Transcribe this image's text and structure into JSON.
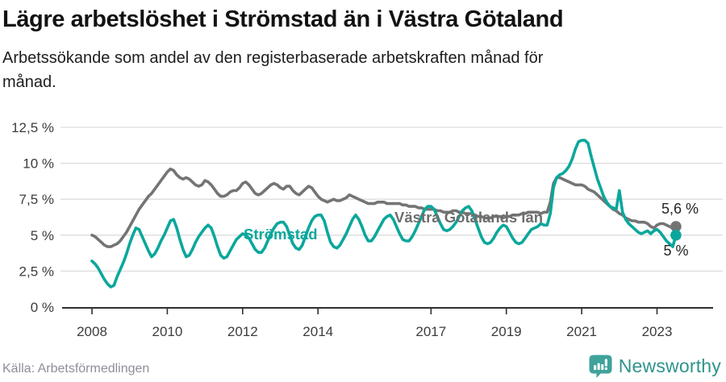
{
  "header": {
    "title": "Lägre arbetslöshet i Strömstad än i Västra Götaland",
    "subtitle_line1": "Arbetssökande som andel av den registerbaserade arbetskraften månad för",
    "subtitle_line2": "månad."
  },
  "footer": {
    "source": "Källa: Arbetsförmedlingen",
    "logo_icon": "newsworthy-speech-bubble-bar-chart-icon",
    "logo_text": "Newsworthy"
  },
  "colors": {
    "stromstad_teal": "#0ba79c",
    "vastra_gotaland_gray": "#747474",
    "gridline": "#dcdcdc",
    "axis": "#2f2f2f",
    "annotation_text": "#242424",
    "logo_teal": "#3fa29b"
  },
  "chart_data": {
    "type": "line",
    "title": "Lägre arbetslöshet i Strömstad än i Västra Götaland",
    "subtitle": "Arbetssökande som andel av den registerbaserade arbetskraften månad för månad.",
    "x_unit": "monthly, January 2008 – July 2023",
    "start_year": 2008,
    "xticks": [
      2008,
      2010,
      2012,
      2014,
      2017,
      2019,
      2021,
      2023
    ],
    "yticks": [
      {
        "value": 0,
        "label": "0 %"
      },
      {
        "value": 2.5,
        "label": "2,5 %"
      },
      {
        "value": 5,
        "label": "5 %"
      },
      {
        "value": 7.5,
        "label": "7,5 %"
      },
      {
        "value": 10,
        "label": "10 %"
      },
      {
        "value": 12.5,
        "label": "12,5 %"
      }
    ],
    "ylim": [
      0,
      12.5
    ],
    "grid": "horizontal",
    "legend_position": "inline-labels",
    "series": [
      {
        "name": "Västra Götalands län",
        "color": "#747474",
        "end_label": "5,6 %",
        "end_value": 5.6,
        "values": [
          5.0,
          4.9,
          4.7,
          4.5,
          4.3,
          4.2,
          4.2,
          4.3,
          4.4,
          4.6,
          4.9,
          5.2,
          5.6,
          6.0,
          6.4,
          6.8,
          7.1,
          7.4,
          7.7,
          7.9,
          8.2,
          8.5,
          8.8,
          9.1,
          9.4,
          9.6,
          9.5,
          9.2,
          9.0,
          8.9,
          9.0,
          8.9,
          8.7,
          8.5,
          8.4,
          8.5,
          8.8,
          8.7,
          8.5,
          8.2,
          7.9,
          7.7,
          7.7,
          7.8,
          8.0,
          8.1,
          8.1,
          8.3,
          8.6,
          8.7,
          8.5,
          8.2,
          7.9,
          7.8,
          7.9,
          8.1,
          8.3,
          8.5,
          8.6,
          8.5,
          8.3,
          8.2,
          8.4,
          8.4,
          8.1,
          7.9,
          7.8,
          8.0,
          8.2,
          8.4,
          8.3,
          8.0,
          7.7,
          7.5,
          7.4,
          7.3,
          7.4,
          7.5,
          7.4,
          7.4,
          7.5,
          7.6,
          7.8,
          7.7,
          7.6,
          7.5,
          7.4,
          7.3,
          7.2,
          7.2,
          7.2,
          7.3,
          7.3,
          7.3,
          7.2,
          7.2,
          7.2,
          7.2,
          7.2,
          7.1,
          7.1,
          7.0,
          7.0,
          7.0,
          6.9,
          6.9,
          6.8,
          6.8,
          6.8,
          6.8,
          6.7,
          6.7,
          6.6,
          6.6,
          6.6,
          6.7,
          6.7,
          6.6,
          6.6,
          6.5,
          6.5,
          6.5,
          6.4,
          6.3,
          6.3,
          6.2,
          6.2,
          6.2,
          6.3,
          6.3,
          6.3,
          6.2,
          6.3,
          6.3,
          6.4,
          6.4,
          6.4,
          6.5,
          6.5,
          6.6,
          6.6,
          6.6,
          6.6,
          6.5,
          6.6,
          6.6,
          7.3,
          8.6,
          9.0,
          9.0,
          8.9,
          8.8,
          8.7,
          8.6,
          8.5,
          8.5,
          8.5,
          8.4,
          8.2,
          8.1,
          8.0,
          7.8,
          7.6,
          7.4,
          7.2,
          7.0,
          6.8,
          6.7,
          6.5,
          6.4,
          6.2,
          6.1,
          6.0,
          6.0,
          5.9,
          5.9,
          5.9,
          5.8,
          5.6,
          5.5,
          5.7,
          5.8,
          5.8,
          5.7,
          5.6,
          5.5,
          5.6
        ]
      },
      {
        "name": "Strömstad",
        "color": "#0ba79c",
        "end_label": "5 %",
        "end_value": 5.0,
        "values": [
          3.2,
          3.0,
          2.7,
          2.3,
          1.9,
          1.6,
          1.4,
          1.5,
          2.1,
          2.6,
          3.1,
          3.7,
          4.4,
          5.0,
          5.5,
          5.4,
          4.9,
          4.4,
          3.9,
          3.5,
          3.7,
          4.1,
          4.6,
          5.0,
          5.5,
          6.0,
          6.1,
          5.5,
          4.7,
          4.0,
          3.5,
          3.6,
          4.0,
          4.5,
          4.9,
          5.2,
          5.5,
          5.7,
          5.5,
          4.9,
          4.2,
          3.6,
          3.4,
          3.5,
          3.9,
          4.3,
          4.7,
          4.9,
          5.1,
          5.0,
          4.8,
          4.4,
          4.0,
          3.8,
          3.8,
          4.1,
          4.6,
          5.1,
          5.5,
          5.8,
          5.9,
          5.9,
          5.6,
          5.0,
          4.4,
          4.1,
          4.0,
          4.3,
          4.9,
          5.5,
          6.0,
          6.3,
          6.4,
          6.4,
          6.0,
          5.2,
          4.5,
          4.2,
          4.1,
          4.3,
          4.7,
          5.1,
          5.6,
          6.1,
          6.4,
          6.1,
          5.6,
          5.0,
          4.6,
          4.6,
          4.9,
          5.3,
          5.7,
          6.1,
          6.3,
          6.4,
          6.1,
          5.6,
          5.1,
          4.7,
          4.6,
          4.6,
          4.9,
          5.3,
          5.8,
          6.3,
          6.8,
          7.0,
          7.0,
          6.8,
          6.3,
          5.8,
          5.4,
          5.3,
          5.4,
          5.6,
          5.9,
          6.3,
          6.7,
          6.9,
          7.0,
          6.7,
          6.1,
          5.5,
          4.9,
          4.5,
          4.4,
          4.5,
          4.8,
          5.2,
          5.5,
          5.7,
          5.6,
          5.2,
          4.8,
          4.5,
          4.4,
          4.5,
          4.8,
          5.1,
          5.4,
          5.5,
          5.6,
          5.8,
          5.7,
          5.7,
          6.5,
          8.3,
          9.0,
          9.2,
          9.3,
          9.5,
          9.8,
          10.3,
          11.0,
          11.5,
          11.6,
          11.6,
          11.4,
          10.5,
          9.7,
          8.9,
          8.3,
          7.7,
          7.3,
          7.0,
          6.9,
          6.8,
          8.1,
          6.6,
          6.1,
          5.8,
          5.6,
          5.4,
          5.2,
          5.1,
          5.2,
          5.3,
          5.1,
          5.3,
          5.4,
          5.2,
          4.9,
          4.6,
          4.4,
          4.2,
          5.0
        ]
      }
    ]
  }
}
